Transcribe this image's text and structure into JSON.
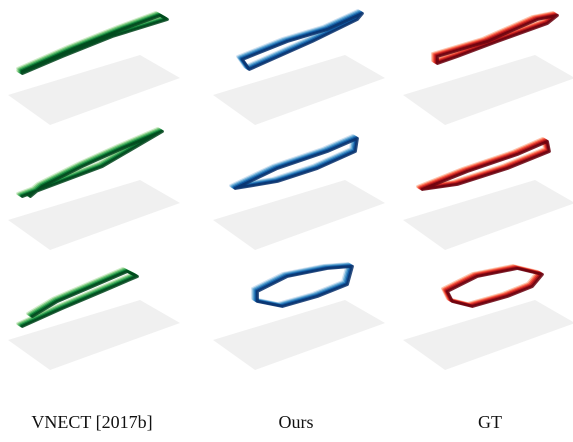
{
  "columns": [
    {
      "label": "VNECT [2017b]",
      "palette": [
        "#c7e9c0",
        "#74c476",
        "#31a354",
        "#006d2c",
        "#00441b"
      ]
    },
    {
      "label": "Ours",
      "palette": [
        "#c6dbef",
        "#6baed6",
        "#3182bd",
        "#08519c",
        "#08306b"
      ]
    },
    {
      "label": "GT",
      "palette": [
        "#fcbba1",
        "#fb6a4a",
        "#de2d26",
        "#a50f15",
        "#67000d"
      ]
    }
  ],
  "ground_plane_color": "#f0f0f0",
  "rows": [
    "row-1",
    "row-2",
    "row-3"
  ]
}
